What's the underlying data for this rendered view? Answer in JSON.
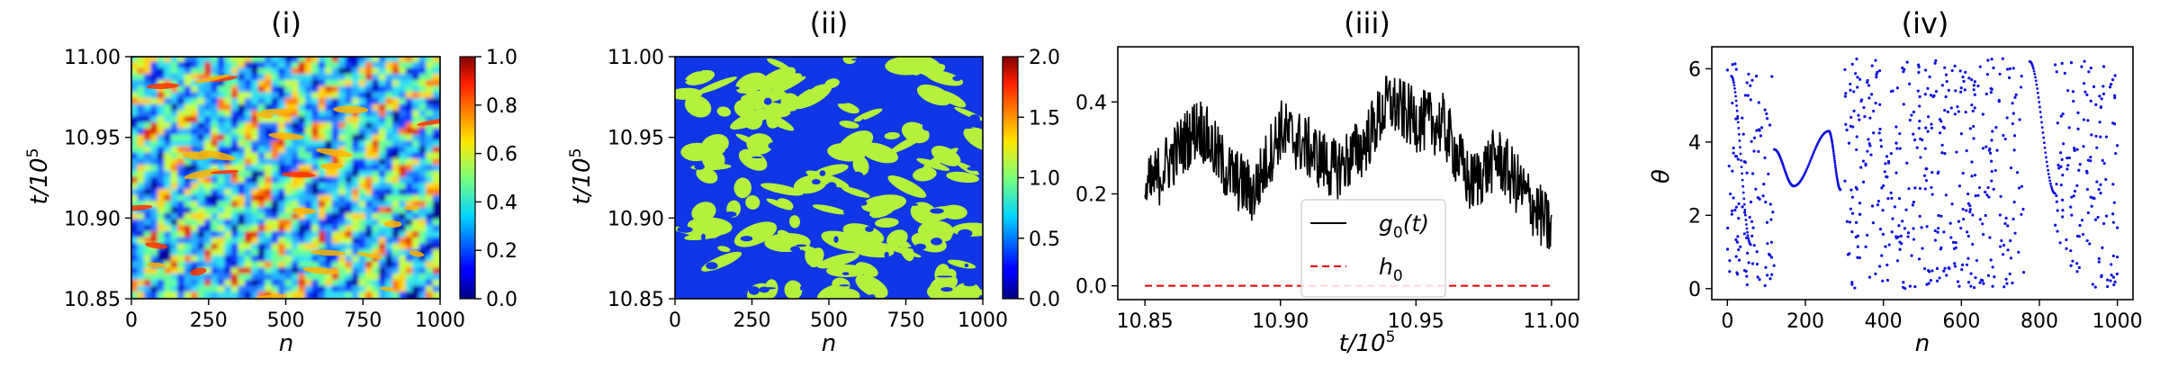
{
  "chart_data": [
    {
      "type": "heatmap",
      "title": "(i)",
      "xlabel": "n",
      "ylabel": "t/10",
      "ylabel_exp": "5",
      "xlim": [
        0,
        1000
      ],
      "ylim": [
        10.85,
        11.0
      ],
      "xticks": [
        "0",
        "250",
        "500",
        "750",
        "1000"
      ],
      "yticks": [
        "10.85",
        "10.90",
        "10.95",
        "11.00"
      ],
      "colorbar": {
        "range": [
          0,
          1.0
        ],
        "ticks": [
          "0.0",
          "0.2",
          "0.4",
          "0.6",
          "0.8",
          "1.0"
        ],
        "colormap": "jet"
      }
    },
    {
      "type": "heatmap",
      "title": "(ii)",
      "xlabel": "n",
      "ylabel": "t/10",
      "ylabel_exp": "5",
      "xlim": [
        0,
        1000
      ],
      "ylim": [
        10.85,
        11.0
      ],
      "xticks": [
        "0",
        "250",
        "500",
        "750",
        "1000"
      ],
      "yticks": [
        "10.85",
        "10.90",
        "10.95",
        "11.00"
      ],
      "colorbar": {
        "range": [
          0,
          2.0
        ],
        "ticks": [
          "0.0",
          "0.5",
          "1.0",
          "1.5",
          "2.0"
        ],
        "colormap": "jet"
      }
    },
    {
      "type": "line",
      "title": "(iii)",
      "xlabel": "t/10",
      "xlabel_exp": "5",
      "xlim": [
        10.84,
        11.01
      ],
      "ylim": [
        -0.03,
        0.52
      ],
      "xticks": [
        "10.85",
        "10.90",
        "10.95",
        "11.00"
      ],
      "yticks": [
        "0.0",
        "0.2",
        "0.4"
      ],
      "series": [
        {
          "name": "g",
          "name_sub": "0",
          "name_suffix": "(t)",
          "color": "#000000",
          "style": "solid",
          "x": [
            10.85,
            10.86,
            10.87,
            10.88,
            10.89,
            10.9,
            10.91,
            10.92,
            10.93,
            10.94,
            10.95,
            10.96,
            10.97,
            10.98,
            10.99,
            11.0
          ],
          "y": [
            0.2,
            0.28,
            0.35,
            0.25,
            0.2,
            0.34,
            0.3,
            0.25,
            0.3,
            0.4,
            0.36,
            0.35,
            0.22,
            0.28,
            0.2,
            0.12
          ]
        },
        {
          "name": "h",
          "name_sub": "0",
          "name_suffix": "",
          "color": "#e00000",
          "style": "dashed",
          "x": [
            10.85,
            11.0
          ],
          "y": [
            0.0,
            0.0
          ]
        }
      ],
      "legend": "lower-center"
    },
    {
      "type": "scatter",
      "title": "(iv)",
      "xlabel": "n",
      "ylabel": "θ",
      "xlim": [
        -40,
        1040
      ],
      "ylim": [
        -0.3,
        6.6
      ],
      "xticks": [
        "0",
        "200",
        "400",
        "600",
        "800",
        "1000"
      ],
      "yticks": [
        "0",
        "2",
        "4",
        "6"
      ],
      "color": "#1010e0",
      "curves": [
        {
          "x": [
            10,
            60
          ],
          "y": [
            5.8,
            1.2
          ]
        },
        {
          "x": [
            120,
            170,
            260,
            290
          ],
          "y": [
            3.8,
            2.8,
            4.3,
            2.7
          ]
        },
        {
          "x": [
            775,
            840
          ],
          "y": [
            6.2,
            2.6
          ]
        }
      ]
    }
  ]
}
